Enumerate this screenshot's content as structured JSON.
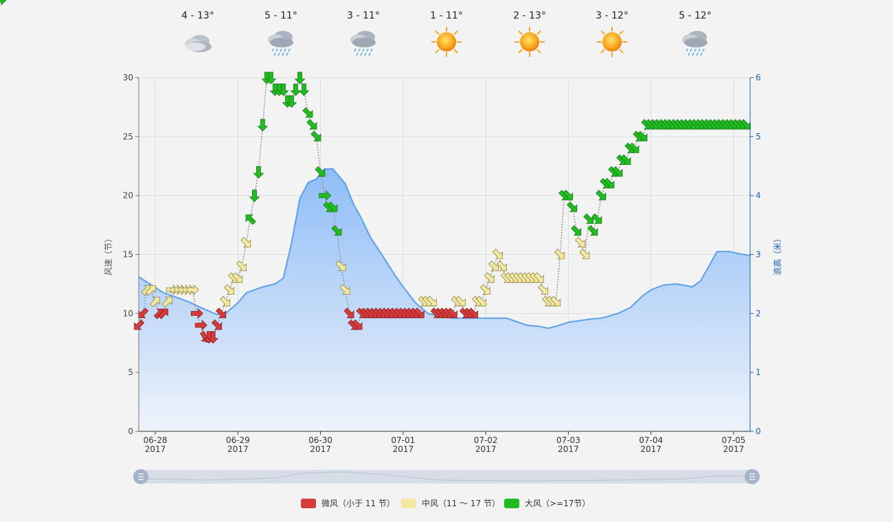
{
  "forecast": [
    {
      "temp": "4 - 13°",
      "icon": "cloudy-icon"
    },
    {
      "temp": "5 - 11°",
      "icon": "rain-icon"
    },
    {
      "temp": "3 - 11°",
      "icon": "rain-icon"
    },
    {
      "temp": "1 - 11°",
      "icon": "sun-icon"
    },
    {
      "temp": "2 - 13°",
      "icon": "sun-icon"
    },
    {
      "temp": "3 - 12°",
      "icon": "sun-icon"
    },
    {
      "temp": "5 - 12°",
      "icon": "rain-icon"
    }
  ],
  "colors": {
    "light": "#d63b3b",
    "medium": "#f2e8a4",
    "strong": "#22bb22",
    "wave_line": "#5aa0ea",
    "wave_fill_top": "#8fbdf7",
    "wave_fill_bottom": "#eef3fa",
    "right_axis": "#1a5fb4"
  },
  "legend": [
    {
      "label": "微风（小于 11 节）",
      "color": "#d63b3b"
    },
    {
      "label": "中风（11 ～ 17 节）",
      "color": "#f2e8a4"
    },
    {
      "label": "大风（>=17节）",
      "color": "#22bb22"
    }
  ],
  "chart_data": {
    "type": "line",
    "x_range": [
      -0.2,
      7.2
    ],
    "x_unit": "days from 06-28 2017",
    "x_ticks": [
      {
        "x": 0,
        "date": "06-28",
        "year": "2017"
      },
      {
        "x": 1,
        "date": "06-29",
        "year": "2017"
      },
      {
        "x": 2,
        "date": "06-30",
        "year": "2017"
      },
      {
        "x": 3,
        "date": "07-01",
        "year": "2017"
      },
      {
        "x": 4,
        "date": "07-02",
        "year": "2017"
      },
      {
        "x": 5,
        "date": "07-03",
        "year": "2017"
      },
      {
        "x": 6,
        "date": "07-04",
        "year": "2017"
      },
      {
        "x": 7,
        "date": "07-05",
        "year": "2017"
      }
    ],
    "y_left": {
      "label": "风速（节）",
      "range": [
        0,
        30
      ],
      "ticks": [
        0,
        5,
        10,
        15,
        20,
        25,
        30
      ]
    },
    "y_right": {
      "label": "浪高（米）",
      "range": [
        0,
        6
      ],
      "ticks": [
        0,
        1,
        2,
        3,
        4,
        5,
        6
      ]
    },
    "grid": true,
    "wave_series": {
      "x": [
        -0.2,
        0.1,
        0.4,
        0.55,
        0.75,
        0.85,
        1.0,
        1.1,
        1.3,
        1.45,
        1.55,
        1.65,
        1.75,
        1.85,
        1.95,
        2.05,
        2.15,
        2.3,
        2.4,
        2.5,
        2.6,
        2.75,
        2.9,
        3.0,
        3.15,
        3.3,
        3.45,
        3.6,
        3.75,
        4.0,
        4.25,
        4.5,
        4.65,
        4.75,
        4.85,
        5.0,
        5.1,
        5.25,
        5.4,
        5.5,
        5.6,
        5.75,
        5.9,
        6.0,
        6.15,
        6.3,
        6.4,
        6.5,
        6.6,
        6.7,
        6.8,
        6.95,
        7.05,
        7.2
      ],
      "y": [
        2.62,
        2.35,
        2.2,
        2.1,
        1.98,
        2.0,
        2.18,
        2.35,
        2.45,
        2.5,
        2.6,
        3.2,
        3.95,
        4.22,
        4.28,
        4.45,
        4.45,
        4.2,
        3.85,
        3.6,
        3.3,
        2.98,
        2.65,
        2.45,
        2.18,
        2.0,
        1.95,
        1.92,
        1.92,
        1.92,
        1.92,
        1.8,
        1.78,
        1.75,
        1.78,
        1.85,
        1.87,
        1.9,
        1.92,
        1.96,
        2.0,
        2.1,
        2.3,
        2.4,
        2.48,
        2.5,
        2.48,
        2.45,
        2.55,
        2.8,
        3.05,
        3.05,
        3.02,
        2.98
      ]
    },
    "wind_series": {
      "x": [
        -0.2,
        -0.15,
        -0.1,
        -0.05,
        0.0,
        0.05,
        0.1,
        0.15,
        0.2,
        0.25,
        0.3,
        0.35,
        0.4,
        0.45,
        0.5,
        0.55,
        0.6,
        0.65,
        0.7,
        0.75,
        0.8,
        0.85,
        0.9,
        0.95,
        1.0,
        1.05,
        1.1,
        1.15,
        1.2,
        1.25,
        1.3,
        1.35,
        1.4,
        1.45,
        1.5,
        1.55,
        1.6,
        1.65,
        1.7,
        1.75,
        1.8,
        1.85,
        1.9,
        1.95,
        2.0,
        2.05,
        2.1,
        2.15,
        2.2,
        2.25,
        2.3,
        2.35,
        2.4,
        2.45,
        2.5,
        2.55,
        2.6,
        2.65,
        2.7,
        2.75,
        2.8,
        2.85,
        2.9,
        2.95,
        3.0,
        3.05,
        3.1,
        3.15,
        3.2,
        3.25,
        3.3,
        3.35,
        3.4,
        3.45,
        3.5,
        3.55,
        3.6,
        3.65,
        3.7,
        3.75,
        3.8,
        3.85,
        3.9,
        3.95,
        4.0,
        4.05,
        4.1,
        4.15,
        4.2,
        4.25,
        4.3,
        4.35,
        4.4,
        4.45,
        4.5,
        4.55,
        4.6,
        4.65,
        4.7,
        4.75,
        4.8,
        4.85,
        4.9,
        4.95,
        5.0,
        5.05,
        5.1,
        5.15,
        5.2,
        5.25,
        5.3,
        5.35,
        5.4,
        5.45,
        5.5,
        5.55,
        5.6,
        5.65,
        5.7,
        5.75,
        5.8,
        5.85,
        5.9,
        5.95,
        6.0,
        6.05,
        6.1,
        6.15,
        6.2,
        6.25,
        6.3,
        6.35,
        6.4,
        6.45,
        6.5,
        6.55,
        6.6,
        6.65,
        6.7,
        6.75,
        6.8,
        6.85,
        6.9,
        6.95,
        7.0,
        7.05,
        7.1,
        7.15,
        7.2
      ],
      "speed": [
        9,
        10,
        12,
        12,
        11,
        10,
        10,
        11,
        12,
        12,
        12,
        12,
        12,
        12,
        10,
        9,
        8,
        8,
        8,
        9,
        10,
        11,
        12,
        13,
        13,
        14,
        16,
        18,
        20,
        22,
        26,
        30,
        30,
        29,
        29,
        29,
        28,
        28,
        29,
        30,
        29,
        27,
        26,
        25,
        22,
        20,
        19,
        19,
        17,
        14,
        12,
        10,
        9,
        9,
        10,
        10,
        10,
        10,
        10,
        10,
        10,
        10,
        10,
        10,
        10,
        10,
        10,
        10,
        10,
        11,
        11,
        11,
        10,
        10,
        10,
        10,
        10,
        11,
        11,
        10,
        10,
        10,
        11,
        11,
        12,
        13,
        14,
        15,
        14,
        13,
        13,
        13,
        13,
        13,
        13,
        13,
        13,
        13,
        12,
        11,
        11,
        11,
        15,
        20,
        20,
        19,
        17,
        16,
        15,
        18,
        17,
        18,
        20,
        21,
        21,
        22,
        22,
        23,
        23,
        24,
        24,
        25,
        25,
        26,
        26,
        26,
        26,
        26,
        26,
        26,
        26,
        26,
        26,
        26,
        26,
        26,
        26,
        26,
        26,
        26,
        26,
        26,
        26,
        26,
        26,
        26,
        26,
        26
      ],
      "direction_deg": [
        135,
        135,
        315,
        315,
        315,
        315,
        315,
        315,
        0,
        0,
        0,
        0,
        0,
        0,
        0,
        0,
        60,
        90,
        90,
        45,
        45,
        45,
        45,
        45,
        45,
        45,
        45,
        225,
        90,
        90,
        90,
        90,
        90,
        90,
        90,
        90,
        90,
        90,
        90,
        90,
        90,
        45,
        45,
        45,
        45,
        0,
        45,
        45,
        45,
        45,
        45,
        45,
        45,
        45,
        45,
        45,
        45,
        45,
        45,
        45,
        45,
        45,
        45,
        45,
        45,
        45,
        45,
        45,
        45,
        45,
        45,
        45,
        45,
        45,
        45,
        45,
        45,
        45,
        45,
        45,
        45,
        45,
        45,
        45,
        45,
        45,
        45,
        45,
        45,
        45,
        45,
        45,
        45,
        45,
        45,
        45,
        45,
        45,
        45,
        45,
        45,
        45,
        45,
        45,
        45,
        45,
        45,
        45,
        45,
        45,
        45,
        45,
        45,
        45,
        45,
        45,
        45,
        45,
        45,
        45,
        45,
        45,
        45,
        45,
        45,
        45,
        45,
        45,
        45,
        45,
        45,
        45,
        45,
        45,
        45,
        45,
        45,
        45,
        45,
        45,
        45,
        45,
        45,
        45,
        45,
        45,
        45,
        45
      ]
    }
  }
}
